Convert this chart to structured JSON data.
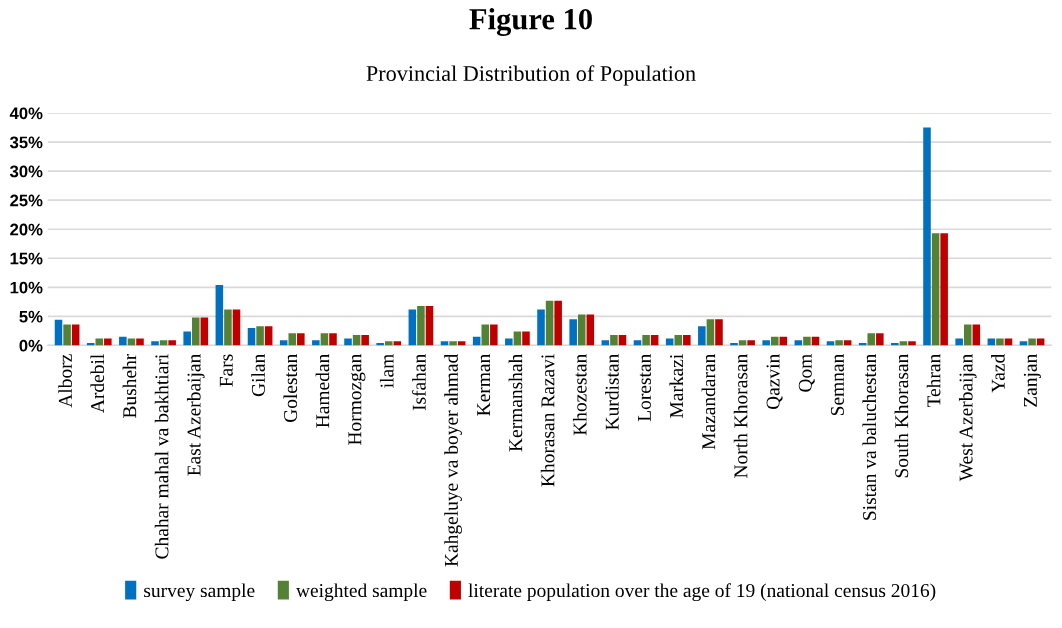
{
  "chart_data": {
    "type": "bar",
    "title": "Figure 10",
    "subtitle": "Provincial Distribution of Population",
    "categories": [
      "Alborz",
      "Ardebil",
      "Bushehr",
      "Chahar mahal va bakhtiari",
      "East Azerbaijan",
      "Fars",
      "Gilan",
      "Golestan",
      "Hamedan",
      "Hormozgan",
      "ilam",
      "Isfahan",
      "Kahgeluye va boyer ahmad",
      "Kerman",
      "Kermanshah",
      "Khorasan Razavi",
      "Khozestan",
      "Kurdistan",
      "Lorestan",
      "Markazi",
      "Mazandaran",
      "North Khorasan",
      "Qazvin",
      "Qom",
      "Semnan",
      "Sistan va baluchestan",
      "South Khorasan",
      "Tehran",
      "West Azerbaijan",
      "Yazd",
      "Zanjan"
    ],
    "series": [
      {
        "name": "survey sample",
        "color": "#0070c0",
        "values": [
          4.4,
          0.4,
          1.5,
          0.7,
          2.4,
          10.4,
          3.0,
          0.9,
          0.9,
          1.2,
          0.4,
          6.2,
          0.7,
          1.5,
          1.2,
          6.2,
          4.5,
          0.9,
          0.9,
          1.2,
          3.3,
          0.4,
          0.9,
          0.9,
          0.7,
          0.4,
          0.4,
          37.5,
          1.2,
          1.2,
          0.7
        ]
      },
      {
        "name": "weighted sample",
        "color": "#548235",
        "values": [
          3.6,
          1.2,
          1.2,
          0.9,
          4.8,
          6.2,
          3.3,
          2.1,
          2.1,
          1.8,
          0.7,
          6.8,
          0.7,
          3.6,
          2.4,
          7.7,
          5.3,
          1.8,
          1.8,
          1.8,
          4.5,
          0.9,
          1.5,
          1.5,
          0.9,
          2.1,
          0.7,
          19.3,
          3.6,
          1.2,
          1.2
        ]
      },
      {
        "name": "literate population over the age of 19 (national census 2016)",
        "color": "#c00000",
        "values": [
          3.6,
          1.2,
          1.2,
          0.9,
          4.8,
          6.2,
          3.3,
          2.1,
          2.1,
          1.8,
          0.7,
          6.8,
          0.7,
          3.6,
          2.4,
          7.7,
          5.3,
          1.8,
          1.8,
          1.8,
          4.5,
          0.9,
          1.5,
          1.5,
          0.9,
          2.1,
          0.7,
          19.3,
          3.6,
          1.2,
          1.2
        ]
      }
    ],
    "ylim": [
      0,
      40
    ],
    "yticks": [
      {
        "value": 0,
        "label": "0%"
      },
      {
        "value": 5,
        "label": "5%"
      },
      {
        "value": 10,
        "label": "10%"
      },
      {
        "value": 15,
        "label": "15%"
      },
      {
        "value": 20,
        "label": "20%"
      },
      {
        "value": 25,
        "label": "25%"
      },
      {
        "value": 30,
        "label": "30%"
      },
      {
        "value": 35,
        "label": "35%"
      },
      {
        "value": 40,
        "label": "40%"
      }
    ],
    "grid": "y",
    "legend": "bottom"
  }
}
